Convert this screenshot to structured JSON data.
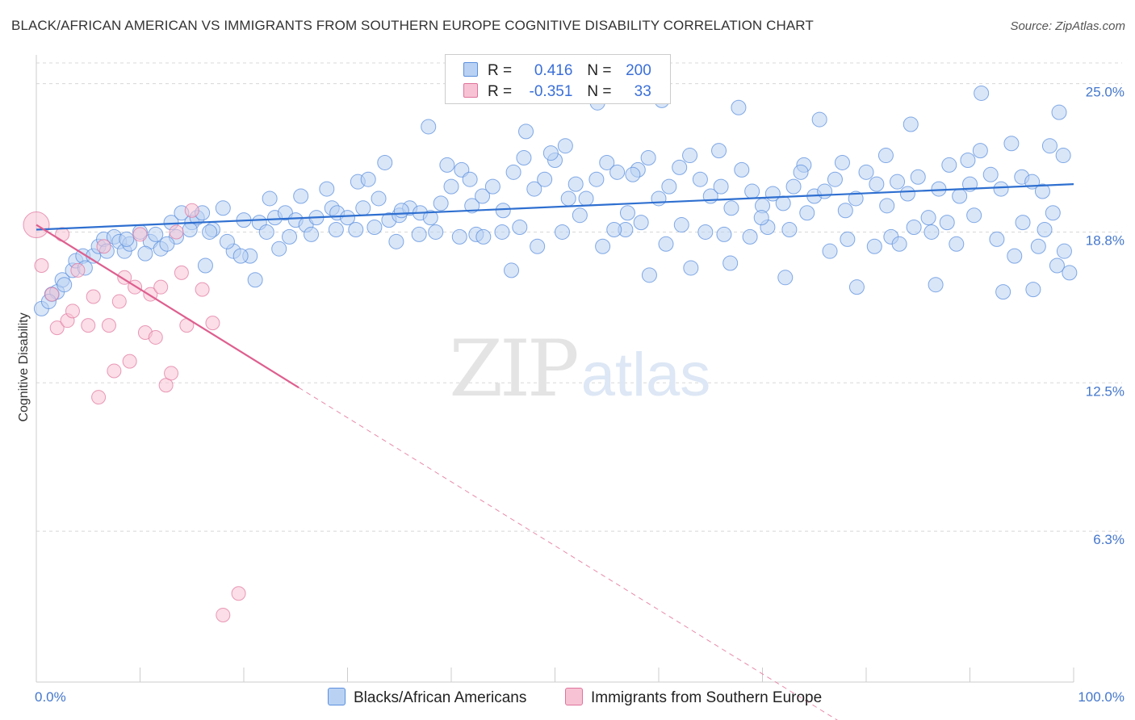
{
  "header": {
    "title": "BLACK/AFRICAN AMERICAN VS IMMIGRANTS FROM SOUTHERN EUROPE COGNITIVE DISABILITY CORRELATION CHART",
    "source": "Source: ZipAtlas.com"
  },
  "watermark": {
    "zip": "ZIP",
    "atlas": "atlas"
  },
  "legend": {
    "rows": [
      {
        "r_label": "R =",
        "r_value": "0.416",
        "n_label": "N =",
        "n_value": "200"
      },
      {
        "r_label": "R =",
        "r_value": "-0.351",
        "n_label": "N =",
        "n_value": "33"
      }
    ]
  },
  "colors": {
    "blue": "#5b8fde",
    "blue_fill": "#b9d2f3",
    "pink": "#e0729b",
    "pink_fill": "#f7c3d4",
    "tick_text": "#4477cc",
    "grid": "#d8d8d8"
  },
  "chart_data": {
    "type": "scatter",
    "title": "BLACK/AFRICAN AMERICAN VS IMMIGRANTS FROM SOUTHERN EUROPE COGNITIVE DISABILITY CORRELATION CHART",
    "xlabel": "",
    "ylabel": "Cognitive Disability",
    "xlim": [
      0,
      100
    ],
    "ylim": [
      0,
      26.2
    ],
    "x_tick_labels": [
      "0.0%",
      "100.0%"
    ],
    "y_ticks": [
      {
        "value": 6.3,
        "label": "6.3%"
      },
      {
        "value": 12.5,
        "label": "12.5%"
      },
      {
        "value": 18.8,
        "label": "18.8%"
      },
      {
        "value": 25.0,
        "label": "25.0%"
      }
    ],
    "grid": "horizontal dashed",
    "legend_position": "top-center",
    "series": [
      {
        "name": "Blacks/African Americans",
        "color": "#5b8fde",
        "r": 0.416,
        "n": 200,
        "trend": {
          "x": [
            0,
            100
          ],
          "y": [
            18.9,
            20.8
          ]
        },
        "points": [
          [
            0.5,
            15.6
          ],
          [
            1.5,
            16.2
          ],
          [
            2,
            16.3
          ],
          [
            2.5,
            16.8
          ],
          [
            3.5,
            17.2
          ],
          [
            3.8,
            17.6
          ],
          [
            4.5,
            17.8
          ],
          [
            5.5,
            17.8
          ],
          [
            6,
            18.2
          ],
          [
            6.5,
            18.5
          ],
          [
            7.5,
            18.6
          ],
          [
            8,
            18.4
          ],
          [
            8.5,
            18.0
          ],
          [
            9,
            18.3
          ],
          [
            10,
            18.8
          ],
          [
            11,
            18.4
          ],
          [
            11.5,
            18.7
          ],
          [
            12,
            18.1
          ],
          [
            13,
            19.2
          ],
          [
            13.5,
            18.6
          ],
          [
            14,
            19.6
          ],
          [
            15,
            19.2
          ],
          [
            15.5,
            19.4
          ],
          [
            16,
            19.6
          ],
          [
            17,
            18.9
          ],
          [
            18,
            19.8
          ],
          [
            19,
            18.0
          ],
          [
            20,
            19.3
          ],
          [
            21.5,
            19.2
          ],
          [
            22.5,
            20.2
          ],
          [
            23,
            19.4
          ],
          [
            24,
            19.6
          ],
          [
            25,
            19.3
          ],
          [
            26,
            19.1
          ],
          [
            27,
            19.4
          ],
          [
            28,
            20.6
          ],
          [
            28.5,
            19.8
          ],
          [
            29,
            19.6
          ],
          [
            30,
            19.4
          ],
          [
            31,
            20.9
          ],
          [
            32,
            21.0
          ],
          [
            33,
            20.2
          ],
          [
            34,
            19.3
          ],
          [
            35,
            19.5
          ],
          [
            36,
            19.8
          ],
          [
            37,
            19.6
          ],
          [
            38,
            19.4
          ],
          [
            39,
            20.0
          ],
          [
            40,
            20.7
          ],
          [
            41,
            21.4
          ],
          [
            42,
            19.9
          ],
          [
            43,
            20.3
          ],
          [
            44,
            20.7
          ],
          [
            45,
            19.7
          ],
          [
            46,
            21.3
          ],
          [
            47,
            21.9
          ],
          [
            48,
            20.6
          ],
          [
            49,
            21.0
          ],
          [
            50,
            21.8
          ],
          [
            51,
            22.4
          ],
          [
            52,
            20.8
          ],
          [
            53,
            20.2
          ],
          [
            54,
            21.0
          ],
          [
            55,
            21.7
          ],
          [
            56,
            21.3
          ],
          [
            57,
            19.6
          ],
          [
            58,
            21.4
          ],
          [
            59,
            21.9
          ],
          [
            60,
            20.2
          ],
          [
            61,
            20.7
          ],
          [
            62,
            21.5
          ],
          [
            63,
            22.0
          ],
          [
            64,
            21.0
          ],
          [
            65,
            20.3
          ],
          [
            66,
            20.7
          ],
          [
            67,
            19.8
          ],
          [
            68,
            21.4
          ],
          [
            69,
            20.5
          ],
          [
            70,
            19.9
          ],
          [
            71,
            20.4
          ],
          [
            72,
            20.0
          ],
          [
            73,
            20.7
          ],
          [
            74,
            21.6
          ],
          [
            75,
            20.3
          ],
          [
            76,
            20.5
          ],
          [
            77,
            21.0
          ],
          [
            78,
            19.7
          ],
          [
            79,
            20.2
          ],
          [
            80,
            21.3
          ],
          [
            81,
            20.8
          ],
          [
            82,
            19.9
          ],
          [
            83,
            20.9
          ],
          [
            84,
            20.4
          ],
          [
            85,
            21.1
          ],
          [
            86,
            19.4
          ],
          [
            87,
            20.6
          ],
          [
            88,
            21.6
          ],
          [
            89,
            20.3
          ],
          [
            90,
            20.8
          ],
          [
            91,
            22.2
          ],
          [
            92,
            21.2
          ],
          [
            93,
            20.6
          ],
          [
            94,
            22.5
          ],
          [
            95,
            21.1
          ],
          [
            96,
            20.9
          ],
          [
            97,
            20.5
          ],
          [
            98,
            19.6
          ],
          [
            99,
            22.0
          ],
          [
            4.7,
            17.3
          ],
          [
            6.8,
            18.0
          ],
          [
            8.7,
            18.5
          ],
          [
            10.5,
            17.9
          ],
          [
            12.6,
            18.3
          ],
          [
            14.8,
            18.9
          ],
          [
            16.7,
            18.8
          ],
          [
            18.4,
            18.4
          ],
          [
            20.6,
            17.8
          ],
          [
            22.2,
            18.8
          ],
          [
            24.4,
            18.6
          ],
          [
            26.5,
            18.7
          ],
          [
            28.9,
            18.9
          ],
          [
            30.8,
            18.9
          ],
          [
            32.6,
            19.0
          ],
          [
            34.7,
            18.4
          ],
          [
            36.9,
            18.7
          ],
          [
            38.5,
            18.8
          ],
          [
            40.8,
            18.6
          ],
          [
            42.4,
            18.7
          ],
          [
            44.9,
            18.8
          ],
          [
            46.6,
            19.0
          ],
          [
            48.3,
            18.2
          ],
          [
            50.7,
            18.8
          ],
          [
            52.4,
            19.5
          ],
          [
            54.6,
            18.2
          ],
          [
            56.8,
            18.9
          ],
          [
            58.3,
            19.2
          ],
          [
            60.7,
            18.3
          ],
          [
            62.2,
            19.1
          ],
          [
            64.5,
            18.8
          ],
          [
            66.3,
            18.7
          ],
          [
            68.8,
            18.6
          ],
          [
            70.5,
            19.0
          ],
          [
            72.6,
            18.9
          ],
          [
            74.3,
            19.6
          ],
          [
            76.5,
            18.0
          ],
          [
            78.2,
            18.5
          ],
          [
            80.8,
            18.2
          ],
          [
            82.4,
            18.6
          ],
          [
            84.6,
            19.0
          ],
          [
            86.3,
            18.8
          ],
          [
            88.7,
            18.3
          ],
          [
            90.4,
            19.5
          ],
          [
            92.6,
            18.5
          ],
          [
            94.3,
            17.8
          ],
          [
            96.6,
            18.2
          ],
          [
            98.4,
            17.4
          ],
          [
            25.5,
            20.3
          ],
          [
            33.6,
            21.7
          ],
          [
            41.8,
            21.0
          ],
          [
            49.6,
            22.1
          ],
          [
            57.5,
            21.2
          ],
          [
            65.8,
            22.2
          ],
          [
            73.7,
            21.3
          ],
          [
            81.9,
            22.0
          ],
          [
            89.8,
            21.8
          ],
          [
            97.7,
            22.4
          ],
          [
            37.8,
            23.2
          ],
          [
            47.2,
            23.0
          ],
          [
            54.1,
            24.2
          ],
          [
            60.3,
            24.3
          ],
          [
            67.7,
            24.0
          ],
          [
            75.5,
            23.5
          ],
          [
            84.3,
            23.3
          ],
          [
            91.1,
            24.6
          ],
          [
            98.6,
            23.8
          ],
          [
            21.1,
            16.8
          ],
          [
            45.8,
            17.2
          ],
          [
            59.1,
            17.0
          ],
          [
            72.2,
            16.9
          ],
          [
            79.1,
            16.5
          ],
          [
            86.7,
            16.6
          ],
          [
            96.1,
            16.4
          ],
          [
            99.6,
            17.1
          ],
          [
            1.2,
            15.9
          ],
          [
            2.7,
            16.6
          ],
          [
            16.3,
            17.4
          ],
          [
            19.7,
            17.8
          ],
          [
            35.2,
            19.7
          ],
          [
            43.1,
            18.6
          ],
          [
            51.3,
            20.2
          ],
          [
            63.1,
            17.3
          ],
          [
            69.9,
            19.4
          ],
          [
            77.7,
            21.7
          ],
          [
            83.2,
            18.3
          ],
          [
            87.8,
            19.2
          ],
          [
            93.2,
            16.3
          ],
          [
            95.1,
            19.2
          ],
          [
            97.2,
            18.9
          ],
          [
            99.1,
            18.0
          ],
          [
            66.9,
            17.5
          ],
          [
            55.7,
            18.9
          ],
          [
            31.5,
            19.8
          ],
          [
            23.4,
            18.1
          ],
          [
            39.6,
            21.6
          ]
        ]
      },
      {
        "name": "Immigrants from Southern Europe",
        "color": "#e0729b",
        "r": -0.351,
        "n": 33,
        "trend": {
          "x": [
            0,
            25.3
          ],
          "y": [
            19.1,
            12.3
          ],
          "dashed_to": {
            "x": 78.0,
            "y": -1.8
          }
        },
        "points": [
          [
            0,
            19.1
          ],
          [
            0.5,
            17.4
          ],
          [
            1.5,
            16.2
          ],
          [
            2,
            14.8
          ],
          [
            2.5,
            18.7
          ],
          [
            3,
            15.1
          ],
          [
            3.5,
            15.5
          ],
          [
            4,
            17.2
          ],
          [
            5,
            14.9
          ],
          [
            5.5,
            16.1
          ],
          [
            6,
            11.9
          ],
          [
            6.5,
            18.2
          ],
          [
            7,
            14.9
          ],
          [
            7.5,
            13.0
          ],
          [
            8,
            15.9
          ],
          [
            8.5,
            16.9
          ],
          [
            9,
            13.4
          ],
          [
            9.5,
            16.5
          ],
          [
            10,
            18.7
          ],
          [
            10.5,
            14.6
          ],
          [
            11,
            16.2
          ],
          [
            11.5,
            14.4
          ],
          [
            12,
            16.5
          ],
          [
            12.5,
            12.4
          ],
          [
            13,
            12.9
          ],
          [
            13.5,
            18.8
          ],
          [
            14,
            17.1
          ],
          [
            14.5,
            14.9
          ],
          [
            15,
            19.7
          ],
          [
            16,
            16.4
          ],
          [
            17,
            15.0
          ],
          [
            18,
            2.8
          ],
          [
            19.5,
            3.7
          ]
        ]
      }
    ]
  },
  "bottom_legend": {
    "items": [
      {
        "label": "Blacks/African Americans"
      },
      {
        "label": "Immigrants from Southern Europe"
      }
    ]
  }
}
